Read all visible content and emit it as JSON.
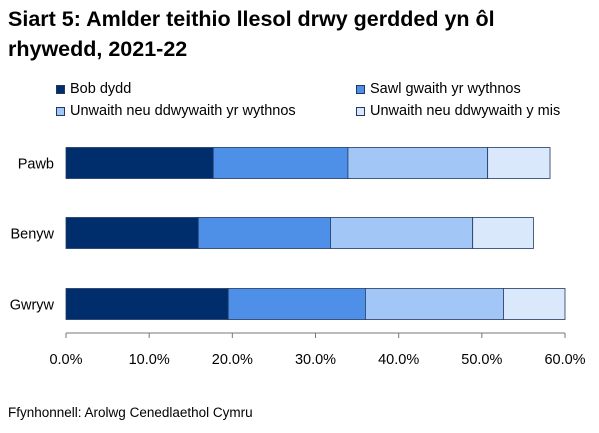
{
  "title": "Siart 5: Amlder teithio llesol drwy gerdded yn ôl rhywedd, 2021-22",
  "source": "Ffynhonnell: Arolwg Cenedlaethol Cymru",
  "chart_data": {
    "type": "bar",
    "orientation": "horizontal",
    "stacked": true,
    "categories": [
      "Pawb",
      "Benyw",
      "Gwryw"
    ],
    "series": [
      {
        "name": "Bob dydd",
        "color": "#002d6b",
        "values": [
          17.7,
          15.9,
          19.5
        ]
      },
      {
        "name": "Sawl gwaith yr wythnos",
        "color": "#4e90e8",
        "values": [
          16.2,
          15.9,
          16.5
        ]
      },
      {
        "name": "Unwaith neu ddwywaith yr wythnos",
        "color": "#a2c7f7",
        "values": [
          16.8,
          17.1,
          16.6
        ]
      },
      {
        "name": "Unwaith neu ddwywaith y mis",
        "color": "#dae8fb",
        "values": [
          7.5,
          7.3,
          7.4
        ]
      }
    ],
    "xlim": [
      0,
      60
    ],
    "xticks": [
      "0.0%",
      "10.0%",
      "20.0%",
      "30.0%",
      "40.0%",
      "50.0%",
      "60.0%"
    ],
    "grid": false,
    "legend_position": "top"
  }
}
